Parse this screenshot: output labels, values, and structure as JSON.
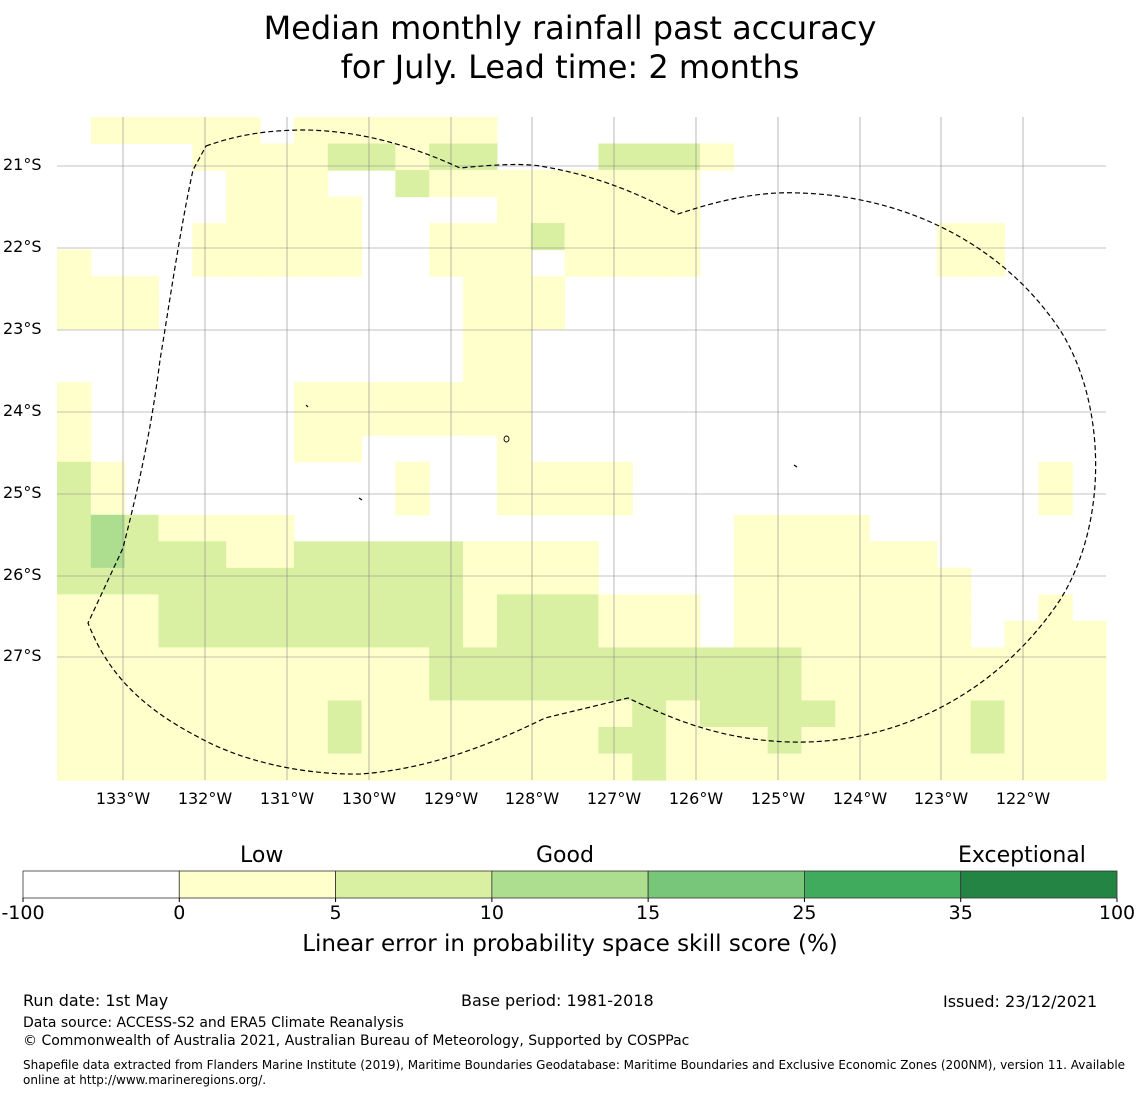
{
  "title_line1": "Median monthly rainfall past accuracy",
  "title_line2": "for July. Lead time: 2 months",
  "map": {
    "lat_labels": [
      "21°S",
      "22°S",
      "23°S",
      "24°S",
      "25°S",
      "26°S",
      "27°S"
    ],
    "lon_labels": [
      "133°W",
      "132°W",
      "131°W",
      "130°W",
      "129°W",
      "128°W",
      "127°W",
      "126°W",
      "125°W",
      "124°W",
      "123°W",
      "122°W"
    ],
    "cell_colors": {
      "0": "#ffffff",
      "1": "#ffffcc",
      "2": "#d9f0a3",
      "3": "#addd8e",
      "4": "#78c679",
      "5": "#41ab5d",
      "6": "#238443"
    },
    "cell_grid": [
      "0111110111111000000000000000000",
      "0000111122122000222100000000000",
      "0000011100211111111000000000000",
      "0000011110000111111000000000000",
      "0000111110011121111000000011000",
      "1000111110011101111000000011000",
      "1110000000001110000000000000000",
      "1110000000001110000000000000000",
      "0000000000001100000000000000000",
      "0000000000001100000000000000000",
      "1000000111111100000000000000000",
      "1000000111111100000000000000000",
      "1000000110000100000000000000000",
      "2100000000100111100000000000010",
      "2100000000100111100000000000010",
      "2321111000000000000011110000000",
      "2322211222221111000011111100000",
      "2222222222221111000011111110000",
      "1112222222221222111011111110010",
      "1112222222221222111011111110111",
      "1111111111122222222222111111111",
      "1111111111122222222222111111111",
      "1111111121111111121222211112111",
      "1111111121111111221112111112111",
      "1111111111111111121111111111111"
    ]
  },
  "colorbar": {
    "categories": [
      "Low",
      "Good",
      "Exceptional"
    ],
    "ticks": [
      "-100",
      "0",
      "5",
      "10",
      "15",
      "25",
      "35",
      "100"
    ],
    "colors": [
      "#ffffff",
      "#ffffcc",
      "#d9f0a3",
      "#addd8e",
      "#78c679",
      "#41ab5d",
      "#238443"
    ],
    "title": "Linear error in probability space skill score (%)"
  },
  "footer": {
    "run_date": "Run date: 1st May",
    "base_period": "Base period: 1981-2018",
    "issued": "Issued: 23/12/2021",
    "data_source": "Data source: ACCESS-S2 and ERA5 Climate Reanalysis",
    "copyright": "© Commonwealth of Australia 2021, Australian Bureau of Meteorology, Supported by COSPPac",
    "shapefile_note": "Shapefile data extracted from Flanders Marine Institute (2019), Maritime Boundaries Geodatabase: Maritime Boundaries and Exclusive Economic Zones (200NM), version 11. Available online at http://www.marineregions.org/."
  }
}
